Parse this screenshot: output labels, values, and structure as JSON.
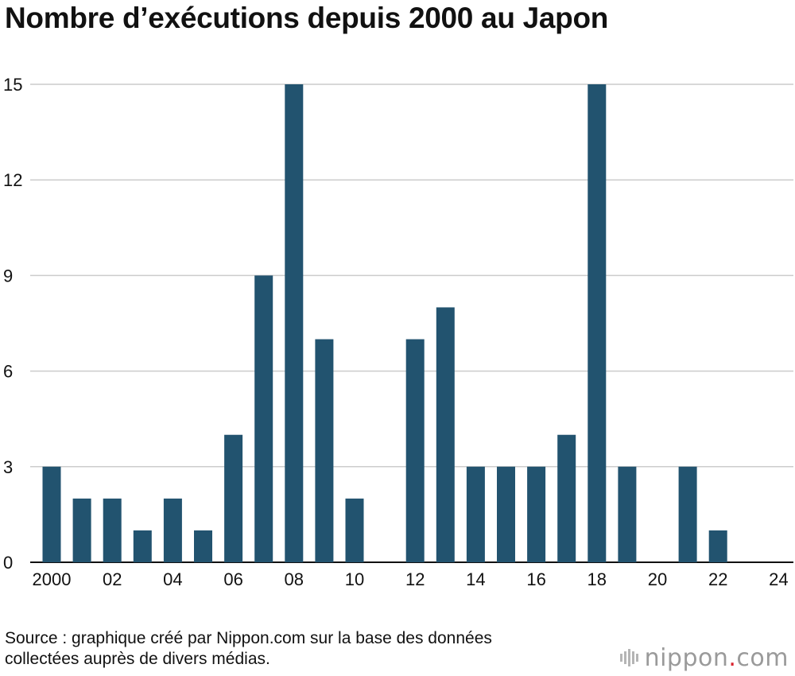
{
  "chart_data": {
    "type": "bar",
    "title": "Nombre d’exécutions depuis 2000 au Japon",
    "x": [
      2000,
      2001,
      2002,
      2003,
      2004,
      2005,
      2006,
      2007,
      2008,
      2009,
      2010,
      2011,
      2012,
      2013,
      2014,
      2015,
      2016,
      2017,
      2018,
      2019,
      2020,
      2021,
      2022,
      2023,
      2024
    ],
    "values": [
      3,
      2,
      2,
      1,
      2,
      1,
      4,
      9,
      15,
      7,
      2,
      0,
      7,
      8,
      3,
      3,
      3,
      4,
      15,
      3,
      0,
      3,
      1,
      0,
      0
    ],
    "x_tick_labels": [
      "2000",
      "02",
      "04",
      "06",
      "08",
      "10",
      "12",
      "14",
      "16",
      "18",
      "20",
      "22",
      "24"
    ],
    "y_ticks": [
      "0",
      "3",
      "6",
      "9",
      "12",
      "15"
    ],
    "ylim": [
      0,
      15
    ],
    "xlabel": "",
    "ylabel": "",
    "grid": "horizontal",
    "bar_color": "#22536f",
    "grid_color": "#cccccc"
  },
  "source": {
    "line1": "Source : graphique créé par Nippon.com sur la base des données",
    "line2": "collectées auprès de divers médias."
  },
  "logo": {
    "word": "nippon",
    "dot": ".",
    "suffix": "com",
    "icon": "nippon-logo-bars-icon"
  }
}
